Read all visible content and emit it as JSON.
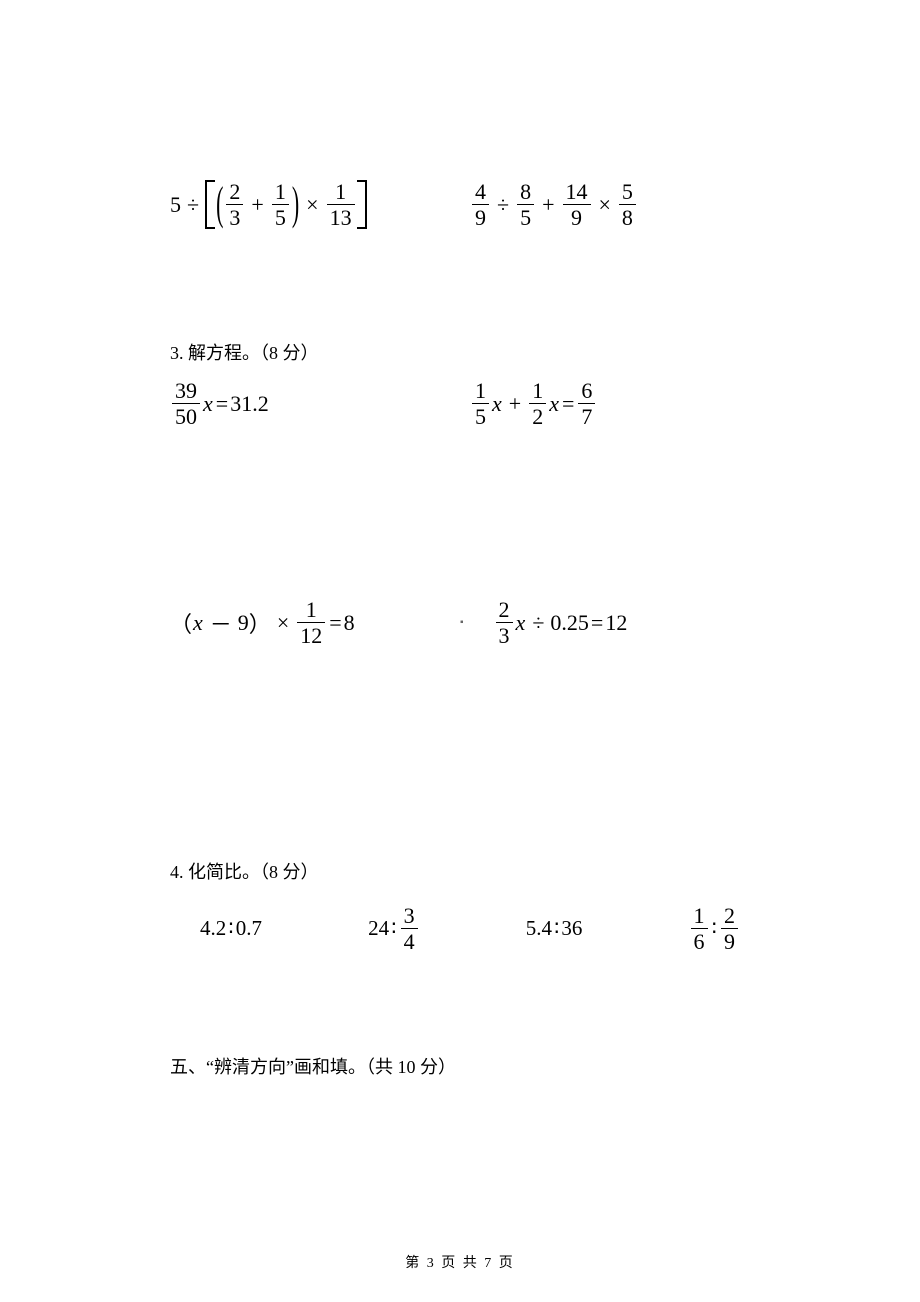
{
  "colors": {
    "text": "#000000",
    "background": "#ffffff",
    "rule": "#000000"
  },
  "fonts": {
    "body_family": "SimSun / Songti SC, serif",
    "math_family": "Times New Roman, serif",
    "body_size_pt": 14,
    "math_size_pt": 16
  },
  "rowA": {
    "left": {
      "prefix": "5",
      "div": "÷",
      "inner_a_num": "2",
      "inner_a_den": "3",
      "plus": "+",
      "inner_b_num": "1",
      "inner_b_den": "5",
      "times": "×",
      "outer_num": "1",
      "outer_den": "13"
    },
    "right": {
      "a_num": "4",
      "a_den": "9",
      "div": "÷",
      "b_num": "8",
      "b_den": "5",
      "plus": "+",
      "c_num": "14",
      "c_den": "9",
      "times": "×",
      "d_num": "5",
      "d_den": "8"
    }
  },
  "section3": {
    "heading": "3. 解方程。（8 分）",
    "row1": {
      "left": {
        "coef_num": "39",
        "coef_den": "50",
        "var": "x",
        "eq": "=",
        "rhs": "31.2"
      },
      "right": {
        "a_num": "1",
        "a_den": "5",
        "var1": "x",
        "plus": "+",
        "b_num": "1",
        "b_den": "2",
        "var2": "x",
        "eq": "=",
        "rhs_num": "6",
        "rhs_den": "7"
      }
    },
    "row2": {
      "left": {
        "lpar": "（",
        "var": "x",
        "minus": "－",
        "nine": "9",
        "rpar": "）",
        "times": "×",
        "f_num": "1",
        "f_den": "12",
        "eq": "=",
        "rhs": "8"
      },
      "right": {
        "coef_num": "2",
        "coef_den": "3",
        "var": "x",
        "div": "÷",
        "divisor": "0.25",
        "eq": "=",
        "rhs": "12"
      }
    }
  },
  "section4": {
    "heading": "4. 化简比。（8 分）",
    "items": {
      "a": {
        "l": "4.2",
        "colon": "∶",
        "r": "0.7"
      },
      "b": {
        "l": "24",
        "colon": "∶",
        "r_num": "3",
        "r_den": "4"
      },
      "c": {
        "l": "5.4",
        "colon": "∶",
        "r": "36"
      },
      "d": {
        "l_num": "1",
        "l_den": "6",
        "colon": "∶",
        "r_num": "2",
        "r_den": "9"
      }
    }
  },
  "section5": {
    "heading": "五、“辨清方向”画和填。（共 10 分）"
  },
  "footer": {
    "text": "第 3 页 共 7 页"
  }
}
